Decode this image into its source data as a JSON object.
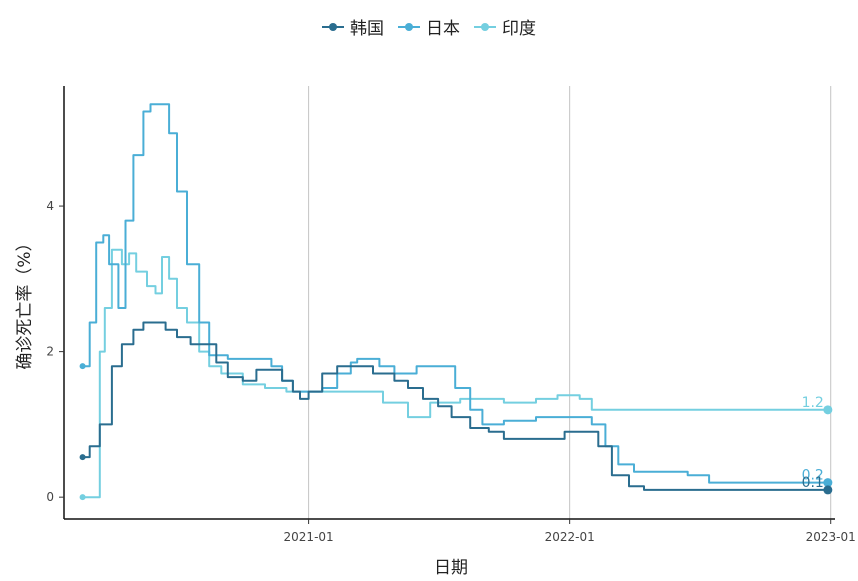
{
  "chart_data": {
    "type": "line",
    "title": "",
    "xlabel": "日期",
    "ylabel": "确诊死亡率（%）",
    "x_range": [
      "2020-01-25",
      "2023-01-07"
    ],
    "ylim": [
      -0.3,
      5.65
    ],
    "x_ticks": [
      {
        "date": "2021-01-01",
        "label": "2021-01"
      },
      {
        "date": "2022-01-01",
        "label": "2022-01"
      },
      {
        "date": "2023-01-01",
        "label": "2023-01"
      }
    ],
    "y_ticks": [
      0,
      2,
      4
    ],
    "grid": "vertical-major",
    "legend_position": "top",
    "end_date": "2022-12-28",
    "series": [
      {
        "name": "韩国",
        "color": "#2a6d8f",
        "end_label": "0.1",
        "points": [
          [
            "2020-02-20",
            0.55
          ],
          [
            "2020-03-01",
            0.7
          ],
          [
            "2020-03-15",
            1.0
          ],
          [
            "2020-04-01",
            1.8
          ],
          [
            "2020-04-15",
            2.1
          ],
          [
            "2020-05-01",
            2.3
          ],
          [
            "2020-05-15",
            2.4
          ],
          [
            "2020-06-01",
            2.4
          ],
          [
            "2020-06-15",
            2.3
          ],
          [
            "2020-07-01",
            2.2
          ],
          [
            "2020-07-20",
            2.1
          ],
          [
            "2020-08-10",
            2.1
          ],
          [
            "2020-08-25",
            1.85
          ],
          [
            "2020-09-10",
            1.65
          ],
          [
            "2020-10-01",
            1.6
          ],
          [
            "2020-10-20",
            1.75
          ],
          [
            "2020-11-10",
            1.75
          ],
          [
            "2020-11-25",
            1.6
          ],
          [
            "2020-12-10",
            1.45
          ],
          [
            "2020-12-20",
            1.35
          ],
          [
            "2021-01-01",
            1.45
          ],
          [
            "2021-01-20",
            1.7
          ],
          [
            "2021-02-10",
            1.8
          ],
          [
            "2021-03-10",
            1.8
          ],
          [
            "2021-04-01",
            1.7
          ],
          [
            "2021-05-01",
            1.6
          ],
          [
            "2021-05-20",
            1.5
          ],
          [
            "2021-06-10",
            1.35
          ],
          [
            "2021-07-01",
            1.25
          ],
          [
            "2021-07-20",
            1.1
          ],
          [
            "2021-08-15",
            0.95
          ],
          [
            "2021-09-10",
            0.9
          ],
          [
            "2021-10-01",
            0.8
          ],
          [
            "2021-12-01",
            0.8
          ],
          [
            "2021-12-25",
            0.9
          ],
          [
            "2022-01-20",
            0.9
          ],
          [
            "2022-02-10",
            0.7
          ],
          [
            "2022-03-01",
            0.3
          ],
          [
            "2022-03-25",
            0.15
          ],
          [
            "2022-04-15",
            0.1
          ],
          [
            "2022-12-28",
            0.1
          ]
        ]
      },
      {
        "name": "日本",
        "color": "#4aaed6",
        "end_label": "0.2",
        "points": [
          [
            "2020-02-20",
            1.8
          ],
          [
            "2020-03-01",
            2.4
          ],
          [
            "2020-03-10",
            3.5
          ],
          [
            "2020-03-20",
            3.6
          ],
          [
            "2020-03-28",
            3.2
          ],
          [
            "2020-04-10",
            2.6
          ],
          [
            "2020-04-20",
            3.8
          ],
          [
            "2020-05-01",
            4.7
          ],
          [
            "2020-05-15",
            5.3
          ],
          [
            "2020-05-25",
            5.4
          ],
          [
            "2020-06-10",
            5.4
          ],
          [
            "2020-06-20",
            5.0
          ],
          [
            "2020-07-01",
            4.2
          ],
          [
            "2020-07-15",
            3.2
          ],
          [
            "2020-08-01",
            2.4
          ],
          [
            "2020-08-15",
            1.95
          ],
          [
            "2020-09-10",
            1.9
          ],
          [
            "2020-10-10",
            1.9
          ],
          [
            "2020-11-10",
            1.8
          ],
          [
            "2020-11-25",
            1.6
          ],
          [
            "2020-12-10",
            1.45
          ],
          [
            "2021-01-01",
            1.45
          ],
          [
            "2021-01-20",
            1.5
          ],
          [
            "2021-02-10",
            1.7
          ],
          [
            "2021-03-01",
            1.85
          ],
          [
            "2021-03-10",
            1.9
          ],
          [
            "2021-04-10",
            1.8
          ],
          [
            "2021-05-01",
            1.7
          ],
          [
            "2021-06-01",
            1.8
          ],
          [
            "2021-07-10",
            1.8
          ],
          [
            "2021-07-25",
            1.5
          ],
          [
            "2021-08-15",
            1.2
          ],
          [
            "2021-09-01",
            1.0
          ],
          [
            "2021-10-01",
            1.05
          ],
          [
            "2021-11-15",
            1.1
          ],
          [
            "2022-01-15",
            1.1
          ],
          [
            "2022-02-01",
            1.0
          ],
          [
            "2022-02-20",
            0.7
          ],
          [
            "2022-03-10",
            0.45
          ],
          [
            "2022-04-01",
            0.35
          ],
          [
            "2022-05-15",
            0.35
          ],
          [
            "2022-06-15",
            0.3
          ],
          [
            "2022-07-15",
            0.2
          ],
          [
            "2022-12-28",
            0.2
          ]
        ]
      },
      {
        "name": "印度",
        "color": "#74cfe0",
        "end_label": "1.2",
        "points": [
          [
            "2020-02-20",
            0.0
          ],
          [
            "2020-03-10",
            0.0
          ],
          [
            "2020-03-15",
            2.0
          ],
          [
            "2020-03-22",
            2.6
          ],
          [
            "2020-04-01",
            3.4
          ],
          [
            "2020-04-15",
            3.2
          ],
          [
            "2020-04-25",
            3.35
          ],
          [
            "2020-05-05",
            3.1
          ],
          [
            "2020-05-20",
            2.9
          ],
          [
            "2020-06-01",
            2.8
          ],
          [
            "2020-06-10",
            3.3
          ],
          [
            "2020-06-20",
            3.0
          ],
          [
            "2020-07-01",
            2.6
          ],
          [
            "2020-07-15",
            2.4
          ],
          [
            "2020-08-01",
            2.0
          ],
          [
            "2020-08-15",
            1.8
          ],
          [
            "2020-09-01",
            1.7
          ],
          [
            "2020-10-01",
            1.55
          ],
          [
            "2020-11-01",
            1.5
          ],
          [
            "2020-12-01",
            1.45
          ],
          [
            "2021-01-01",
            1.45
          ],
          [
            "2021-02-15",
            1.45
          ],
          [
            "2021-04-15",
            1.3
          ],
          [
            "2021-05-20",
            1.1
          ],
          [
            "2021-06-20",
            1.3
          ],
          [
            "2021-08-01",
            1.35
          ],
          [
            "2021-10-01",
            1.3
          ],
          [
            "2021-11-15",
            1.35
          ],
          [
            "2021-12-15",
            1.4
          ],
          [
            "2022-01-15",
            1.35
          ],
          [
            "2022-02-01",
            1.2
          ],
          [
            "2022-12-28",
            1.2
          ]
        ]
      }
    ]
  }
}
